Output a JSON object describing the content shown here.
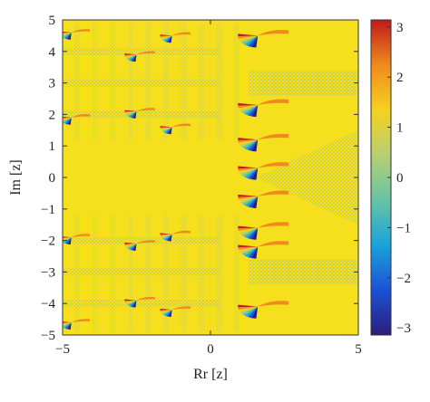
{
  "chart_data": {
    "type": "heatmap",
    "xlabel": "Rr [z]",
    "ylabel": "Im [z]",
    "xlim": [
      -5,
      5
    ],
    "ylim": [
      -5,
      5
    ],
    "x_ticks": [
      -5,
      0,
      5
    ],
    "y_ticks": [
      5,
      4,
      3,
      2,
      1,
      0,
      -1,
      -2,
      -3,
      -4,
      -5
    ],
    "colorbar": {
      "range": [
        -3.14,
        3.14
      ],
      "ticks": [
        3,
        2,
        1,
        0,
        -1,
        -2,
        -3
      ],
      "colormap": [
        "#2b1d7a",
        "#1a52d6",
        "#1aa3d9",
        "#67c4a3",
        "#b7cf73",
        "#f5d21e",
        "#f08a1e",
        "#c21a1a"
      ]
    },
    "background_value": 1,
    "background_color": "#f6df1c",
    "grain_color": "#b5cf7d",
    "grain_bands_y": [
      -4,
      -3,
      -2,
      2,
      3,
      4
    ],
    "grain_bands_x_half_width": 4.3,
    "grain_tube_y": [
      -3,
      3
    ],
    "grain_tube_x_from": 1.3,
    "wedge_centers": [
      {
        "x": 1.6,
        "y": 4.5
      },
      {
        "x": 1.6,
        "y": 2.3
      },
      {
        "x": 1.6,
        "y": 1.2
      },
      {
        "x": 1.6,
        "y": 0.3
      },
      {
        "x": 1.6,
        "y": -0.6
      },
      {
        "x": 1.6,
        "y": -1.6
      },
      {
        "x": 1.6,
        "y": -2.2
      },
      {
        "x": 1.6,
        "y": -4.1
      },
      {
        "x": -1.3,
        "y": 4.5
      },
      {
        "x": -1.3,
        "y": 1.6
      },
      {
        "x": -1.3,
        "y": -1.8
      },
      {
        "x": -1.3,
        "y": -4.2
      },
      {
        "x": -2.5,
        "y": 3.9
      },
      {
        "x": -2.5,
        "y": 2.1
      },
      {
        "x": -2.5,
        "y": -2.1
      },
      {
        "x": -2.5,
        "y": -3.9
      },
      {
        "x": -4.7,
        "y": 4.6
      },
      {
        "x": -4.7,
        "y": 1.9
      },
      {
        "x": -4.7,
        "y": -1.9
      },
      {
        "x": -4.7,
        "y": -4.6
      }
    ]
  }
}
